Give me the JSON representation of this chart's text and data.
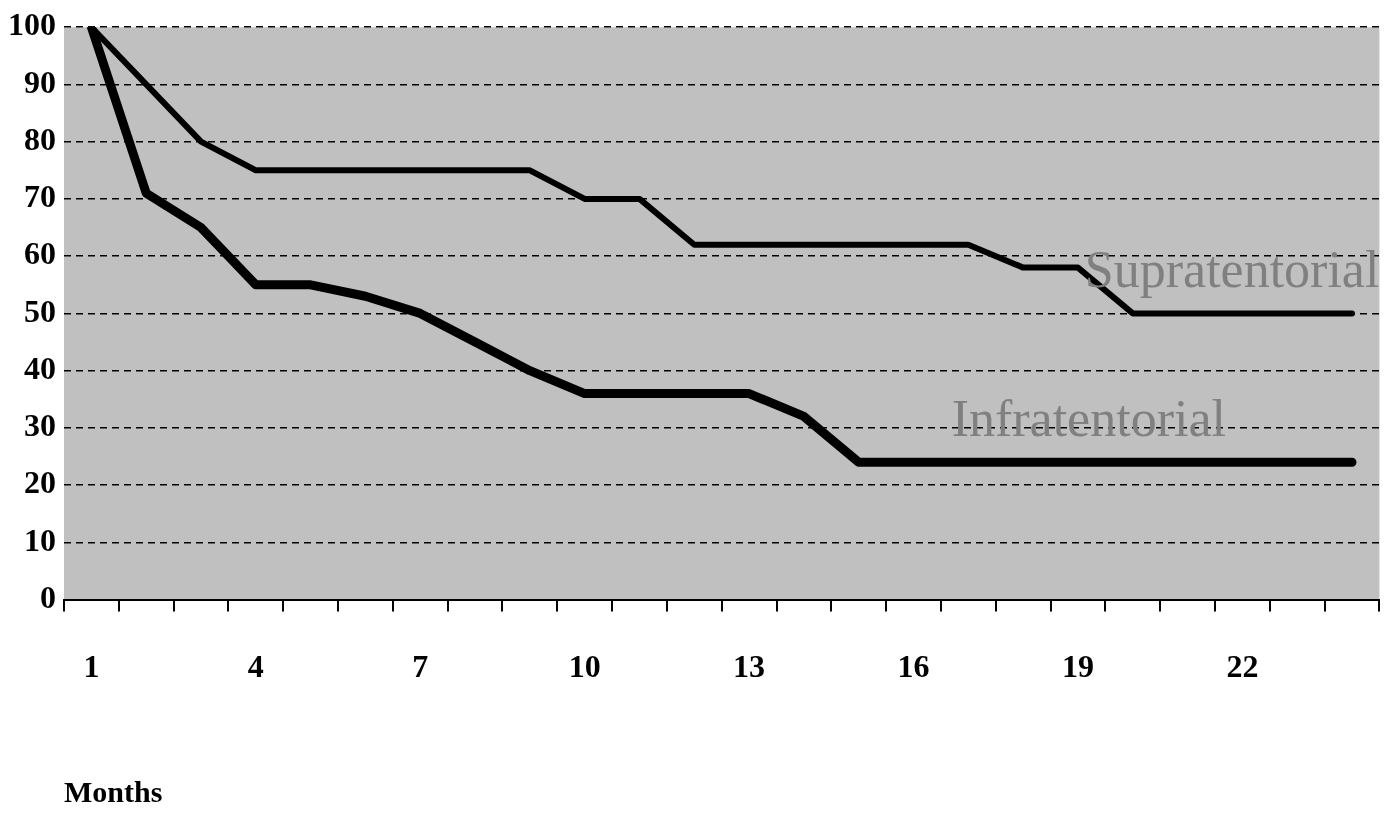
{
  "chart_data": {
    "type": "line",
    "xlabel": "Months",
    "categories": [
      "1",
      null,
      null,
      "4",
      null,
      null,
      "7",
      null,
      null,
      "10",
      null,
      null,
      "13",
      null,
      null,
      "16",
      null,
      null,
      "19",
      null,
      null,
      "22",
      null,
      null
    ],
    "series": [
      {
        "name": "Supratentorial",
        "color": "#000000",
        "values": [
          100,
          90,
          80,
          75,
          75,
          75,
          75,
          75,
          75,
          70,
          70,
          62,
          62,
          62,
          62,
          62,
          62,
          58,
          58,
          50,
          50,
          50,
          50,
          50
        ]
      },
      {
        "name": "Infratentorial",
        "color": "#000000",
        "values": [
          100,
          71,
          65,
          55,
          55,
          53,
          50,
          45,
          40,
          36,
          36,
          36,
          36,
          32,
          24,
          24,
          24,
          24,
          24,
          24,
          24,
          24,
          24,
          24
        ]
      }
    ],
    "ylim": [
      0,
      100
    ],
    "yticks": [
      0,
      10,
      20,
      30,
      40,
      50,
      60,
      70,
      80,
      90,
      100
    ],
    "grid": "y",
    "legend": false,
    "marker": "none",
    "line_style": "solid"
  }
}
